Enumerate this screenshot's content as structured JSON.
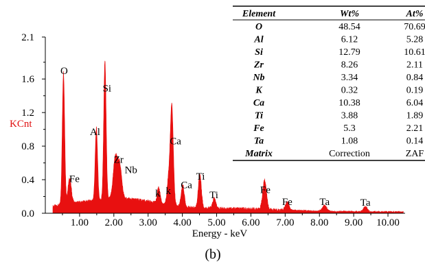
{
  "chart_data": {
    "type": "area",
    "ylabel": "KCnt",
    "xlabel": "Energy - keV",
    "caption": "(b)",
    "xlim": [
      0,
      10.5
    ],
    "ylim": [
      0,
      2.1
    ],
    "x_ticks": [
      "1.00",
      "2.00",
      "3.00",
      "4.00",
      "5.00",
      "6.00",
      "7.00",
      "8.00",
      "9.00",
      "10.00"
    ],
    "y_ticks": [
      "0.0",
      "0.4",
      "0.8",
      "1.2",
      "1.6",
      "2.1"
    ],
    "fill_color": "#e81010",
    "background_level": 0.1,
    "peaks": [
      {
        "x": 0.53,
        "y": 1.58,
        "w": 0.035
      },
      {
        "x": 0.71,
        "y": 0.3,
        "w": 0.05
      },
      {
        "x": 1.49,
        "y": 0.86,
        "w": 0.035
      },
      {
        "x": 1.74,
        "y": 1.65,
        "w": 0.035
      },
      {
        "x": 2.04,
        "y": 0.48,
        "w": 0.06
      },
      {
        "x": 2.17,
        "y": 0.4,
        "w": 0.06
      },
      {
        "x": 3.31,
        "y": 0.2,
        "w": 0.04
      },
      {
        "x": 3.59,
        "y": 0.27,
        "w": 0.04
      },
      {
        "x": 3.69,
        "y": 1.2,
        "w": 0.045
      },
      {
        "x": 4.01,
        "y": 0.26,
        "w": 0.045
      },
      {
        "x": 4.51,
        "y": 0.4,
        "w": 0.045
      },
      {
        "x": 4.93,
        "y": 0.12,
        "w": 0.045
      },
      {
        "x": 6.4,
        "y": 0.35,
        "w": 0.055
      },
      {
        "x": 7.06,
        "y": 0.1,
        "w": 0.05
      },
      {
        "x": 8.15,
        "y": 0.07,
        "w": 0.06
      },
      {
        "x": 9.34,
        "y": 0.06,
        "w": 0.06
      }
    ],
    "peak_labels": [
      {
        "text": "O",
        "x": 0.55,
        "y": 1.66
      },
      {
        "text": "Fe",
        "x": 0.85,
        "y": 0.37
      },
      {
        "text": "Al",
        "x": 1.45,
        "y": 0.93
      },
      {
        "text": "Si",
        "x": 1.8,
        "y": 1.45
      },
      {
        "text": "Zr",
        "x": 2.14,
        "y": 0.6
      },
      {
        "text": "Nb",
        "x": 2.5,
        "y": 0.48
      },
      {
        "text": "k",
        "x": 3.28,
        "y": 0.2
      },
      {
        "text": "k",
        "x": 3.59,
        "y": 0.23
      },
      {
        "text": "Ca",
        "x": 3.8,
        "y": 0.82
      },
      {
        "text": "Ca",
        "x": 4.12,
        "y": 0.3
      },
      {
        "text": "Ti",
        "x": 4.53,
        "y": 0.4
      },
      {
        "text": "Ti",
        "x": 4.92,
        "y": 0.18
      },
      {
        "text": "Fe",
        "x": 6.42,
        "y": 0.24
      },
      {
        "text": "Fe",
        "x": 7.06,
        "y": 0.1
      },
      {
        "text": "Ta",
        "x": 8.15,
        "y": 0.1
      },
      {
        "text": "Ta",
        "x": 9.34,
        "y": 0.09
      }
    ]
  },
  "table": {
    "headers": [
      "Element",
      "Wt%",
      "At%"
    ],
    "rows": [
      {
        "element": "O",
        "wt": "48.54",
        "at": "70.69"
      },
      {
        "element": "Al",
        "wt": "6.12",
        "at": "5.28"
      },
      {
        "element": "Si",
        "wt": "12.79",
        "at": "10.61"
      },
      {
        "element": "Zr",
        "wt": "8.26",
        "at": "2.11"
      },
      {
        "element": "Nb",
        "wt": "3.34",
        "at": "0.84"
      },
      {
        "element": "K",
        "wt": "0.32",
        "at": "0.19"
      },
      {
        "element": "Ca",
        "wt": "10.38",
        "at": "6.04"
      },
      {
        "element": "Ti",
        "wt": "3.88",
        "at": "1.89"
      },
      {
        "element": "Fe",
        "wt": "5.3",
        "at": "2.21"
      },
      {
        "element": "Ta",
        "wt": "1.08",
        "at": "0.14"
      },
      {
        "element": "Matrix",
        "wt": "Correction",
        "at": "ZAF"
      }
    ]
  }
}
